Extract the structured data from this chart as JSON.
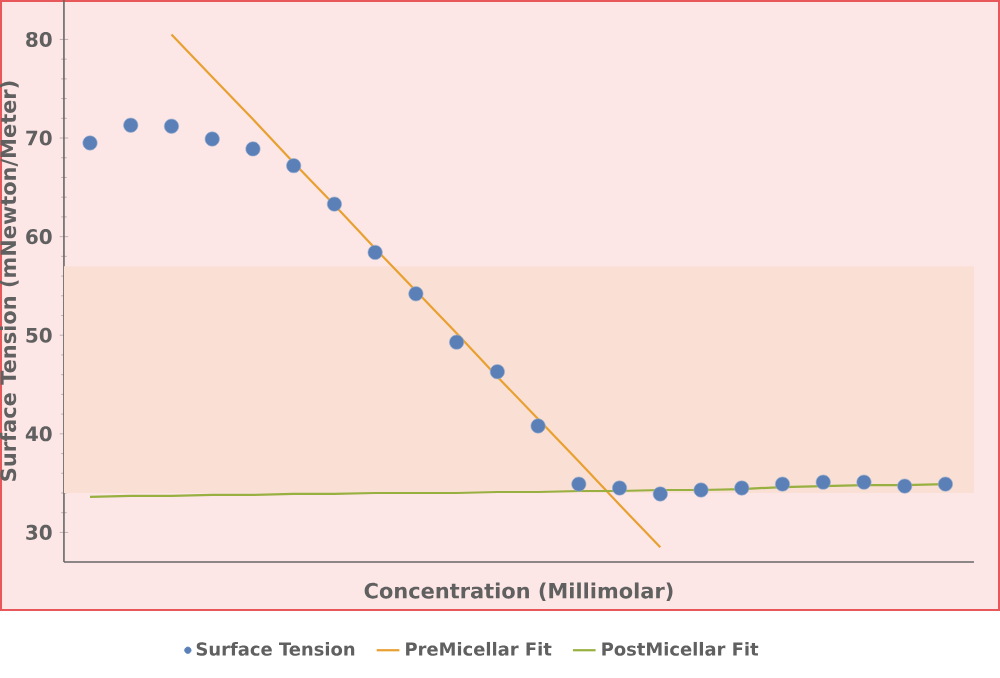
{
  "chart_data": {
    "type": "scatter",
    "xlabel": "Concentration (Millimolar)",
    "ylabel": "Surface Tension (mNewton/Meter)",
    "categories": [
      null,
      null,
      null,
      null,
      null,
      null,
      null,
      null,
      null,
      null,
      null,
      null,
      null,
      null,
      null,
      null,
      null,
      null,
      null,
      null,
      null,
      null
    ],
    "ylim": [
      27,
      84
    ],
    "yticks": [
      30,
      40,
      50,
      60,
      70,
      80
    ],
    "tick_labels": "y",
    "grid": false,
    "legend": "bottom",
    "bands": [
      {
        "axis": "y",
        "from": 34,
        "to": 57,
        "color": "#fadfd4"
      }
    ],
    "series": [
      {
        "name": "Surface Tension",
        "marker": "circle",
        "color": "#5b80b8",
        "values": [
          69.5,
          71.3,
          71.2,
          69.9,
          68.9,
          67.2,
          63.3,
          58.4,
          54.2,
          49.3,
          46.3,
          40.8,
          34.9,
          34.5,
          33.9,
          34.3,
          34.5,
          34.9,
          35.1,
          35.1,
          34.7,
          34.9
        ]
      },
      {
        "name": "PreMicellar Fit",
        "type": "line",
        "marker": "none",
        "line_style": "solid",
        "color": "#e8a030",
        "values": [
          null,
          null,
          80.5,
          76.2,
          71.9,
          67.5,
          63.2,
          58.8,
          54.5,
          50.2,
          45.8,
          41.5,
          37.2,
          32.8,
          28.5,
          null,
          null,
          null,
          null,
          null,
          null,
          null
        ]
      },
      {
        "name": "PostMicellar Fit",
        "type": "line",
        "marker": "none",
        "line_style": "solid",
        "color": "#98b040",
        "values": [
          33.6,
          33.7,
          33.7,
          33.8,
          33.8,
          33.9,
          33.9,
          34.0,
          34.0,
          34.0,
          34.1,
          34.1,
          34.2,
          34.2,
          34.3,
          34.3,
          34.4,
          34.6,
          34.7,
          34.8,
          34.8,
          34.9
        ]
      }
    ]
  }
}
